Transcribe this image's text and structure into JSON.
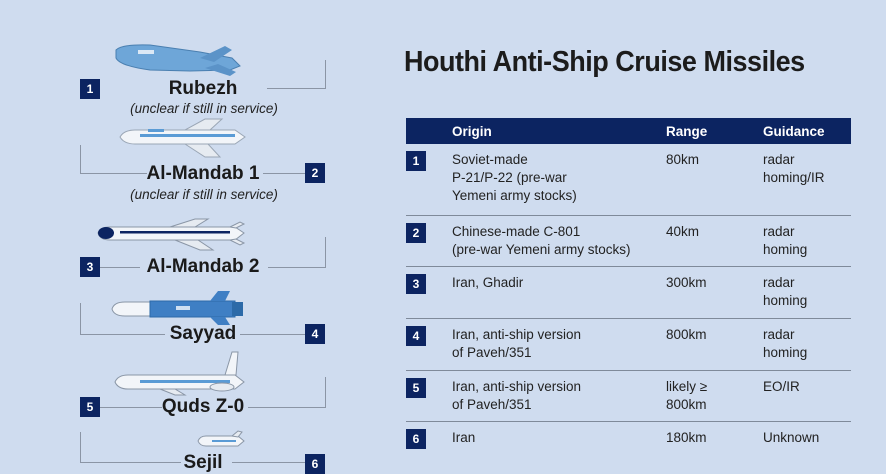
{
  "title": "Houthi Anti-Ship Cruise Missiles",
  "table": {
    "headers": {
      "origin": "Origin",
      "range": "Range",
      "guidance": "Guidance"
    },
    "rows": [
      {
        "num": "1",
        "origin": "Soviet-made\nP-21/P-22 (pre-war\nYemeni army stocks)",
        "range": "80km",
        "guidance": "radar\nhoming/IR"
      },
      {
        "num": "2",
        "origin": "Chinese-made C-801\n(pre-war Yemeni army stocks)",
        "range": "40km",
        "guidance": "radar\nhoming"
      },
      {
        "num": "3",
        "origin": "Iran, Ghadir",
        "range": "300km",
        "guidance": "radar\nhoming"
      },
      {
        "num": "4",
        "origin": "Iran, anti-ship version\nof Paveh/351",
        "range": "800km",
        "guidance": "radar\nhoming"
      },
      {
        "num": "5",
        "origin": "Iran, anti-ship version\nof Paveh/351",
        "range": "likely ≥\n800km",
        "guidance": "EO/IR"
      },
      {
        "num": "6",
        "origin": "Iran",
        "range": "180km",
        "guidance": "Unknown"
      }
    ]
  },
  "missiles": [
    {
      "num": "1",
      "name": "Rubezh",
      "note": "(unclear if still in service)"
    },
    {
      "num": "2",
      "name": "Al-Mandab 1",
      "note": "(unclear if still in service)"
    },
    {
      "num": "3",
      "name": "Al-Mandab 2",
      "note": ""
    },
    {
      "num": "4",
      "name": "Sayyad",
      "note": ""
    },
    {
      "num": "5",
      "name": "Quds Z-0",
      "note": ""
    },
    {
      "num": "6",
      "name": "Sejil",
      "note": ""
    }
  ],
  "colors": {
    "background": "#cfdcef",
    "navy": "#0c2461",
    "missile_blue": "#5a9bd5"
  }
}
